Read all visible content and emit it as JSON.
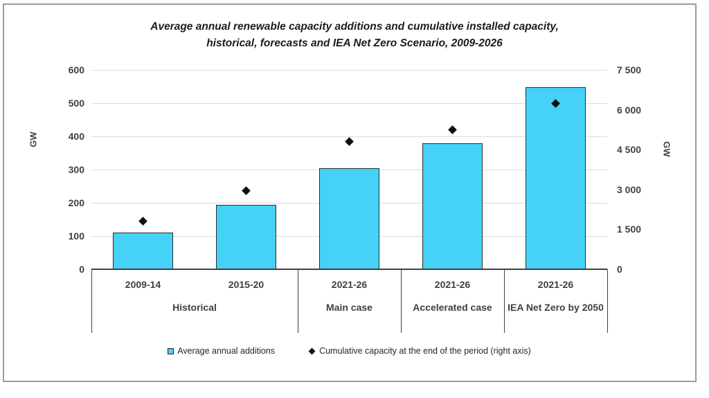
{
  "title": {
    "line1": "Average annual renewable capacity additions and cumulative installed capacity,",
    "line2": "historical, forecasts and IEA Net Zero Scenario, 2009-2026"
  },
  "chart_data": {
    "type": "bar",
    "subtype": "combo-bar-and-diamond-scatter",
    "title": "Average annual renewable capacity additions and cumulative installed capacity, historical, forecasts and IEA Net Zero Scenario, 2009-2026",
    "categories": [
      "2009-14",
      "2015-20",
      "2021-26",
      "2021-26",
      "2021-26"
    ],
    "group_labels": [
      {
        "label": "Historical",
        "start": 0,
        "end": 1
      },
      {
        "label": "Main case",
        "start": 2,
        "end": 2
      },
      {
        "label": "Accelerated case",
        "start": 3,
        "end": 3
      },
      {
        "label": "IEA Net Zero by 2050",
        "start": 4,
        "end": 4
      }
    ],
    "series": [
      {
        "name": "Average annual additions",
        "type": "bar",
        "axis": "left",
        "color": "#45d2f6",
        "values": [
          110,
          193,
          305,
          380,
          547
        ]
      },
      {
        "name": "Cumulative capacity at the end of the period (right axis)",
        "type": "scatter",
        "marker": "diamond",
        "axis": "right",
        "color": "#111111",
        "values": [
          1800,
          2950,
          4800,
          5250,
          6250
        ]
      }
    ],
    "left_axis": {
      "label": "GW",
      "min": 0,
      "max": 600,
      "ticks": [
        0,
        100,
        200,
        300,
        400,
        500,
        600
      ]
    },
    "right_axis": {
      "label": "GW",
      "min": 0,
      "max": 7500,
      "ticks": [
        "0",
        "1 500",
        "3 000",
        "4 500",
        "6 000",
        "7 500"
      ]
    },
    "grid": true,
    "legend_position": "bottom"
  },
  "colors": {
    "bar_fill": "#45d2f6",
    "bar_border": "#2b2b2b",
    "gridline": "#dcdcdc",
    "axis_line": "#3f3f3f",
    "text": "#3f3f3f",
    "frame_border": "#9c9c90",
    "marker": "#111111"
  }
}
